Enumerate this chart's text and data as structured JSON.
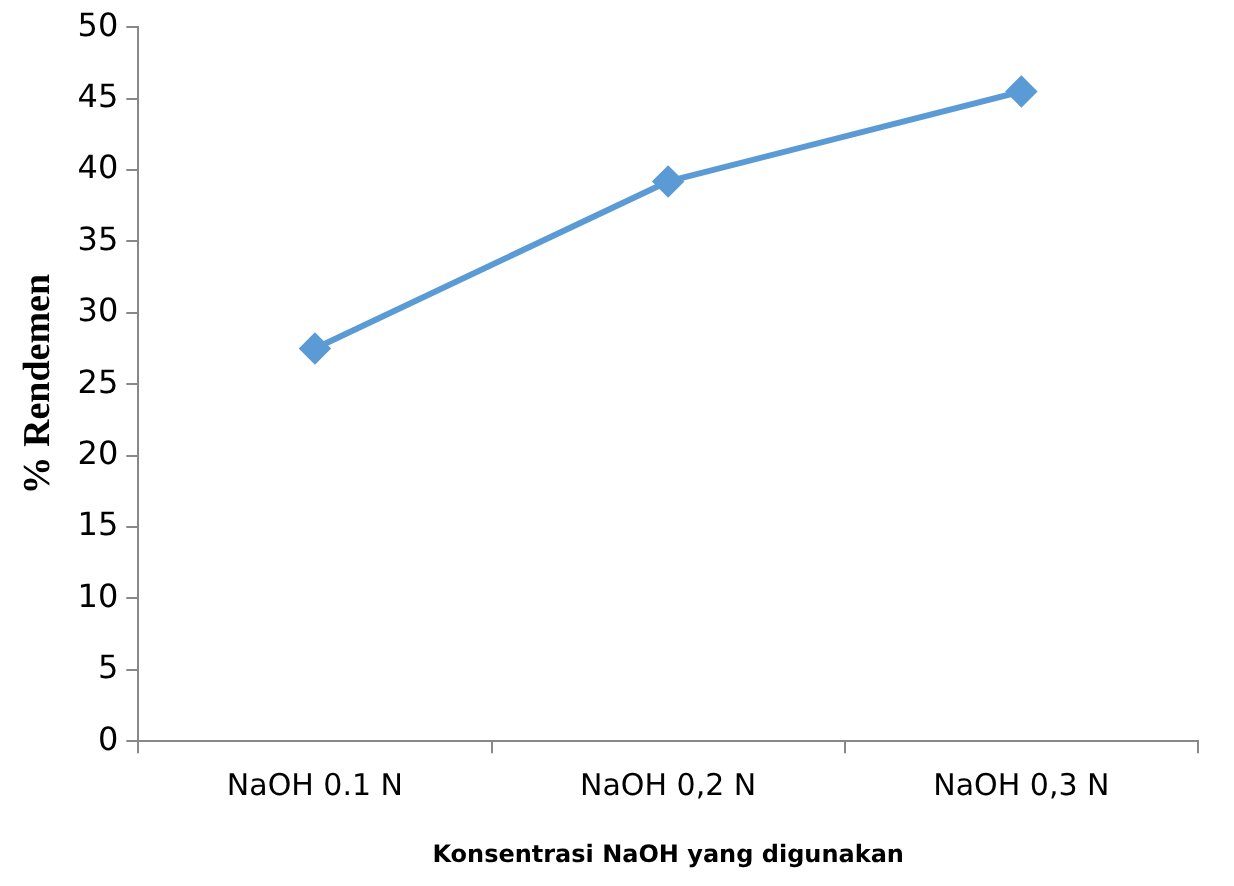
{
  "chart_data": {
    "type": "line",
    "xlabel": "Konsentrasi NaOH yang digunakan",
    "ylabel": "% Rendemen",
    "categories": [
      "NaOH 0.1 N",
      "NaOH 0,2 N",
      "NaOH 0,3 N"
    ],
    "series": [
      {
        "color": "#5b9bd5",
        "values": [
          27.5,
          39.2,
          45.5
        ]
      }
    ],
    "ylim": [
      0,
      50
    ],
    "yticks": [
      0,
      5,
      10,
      15,
      20,
      25,
      30,
      35,
      40,
      45,
      50
    ],
    "grid": false,
    "legend": false,
    "marker": "diamond",
    "line_style": "solid"
  }
}
